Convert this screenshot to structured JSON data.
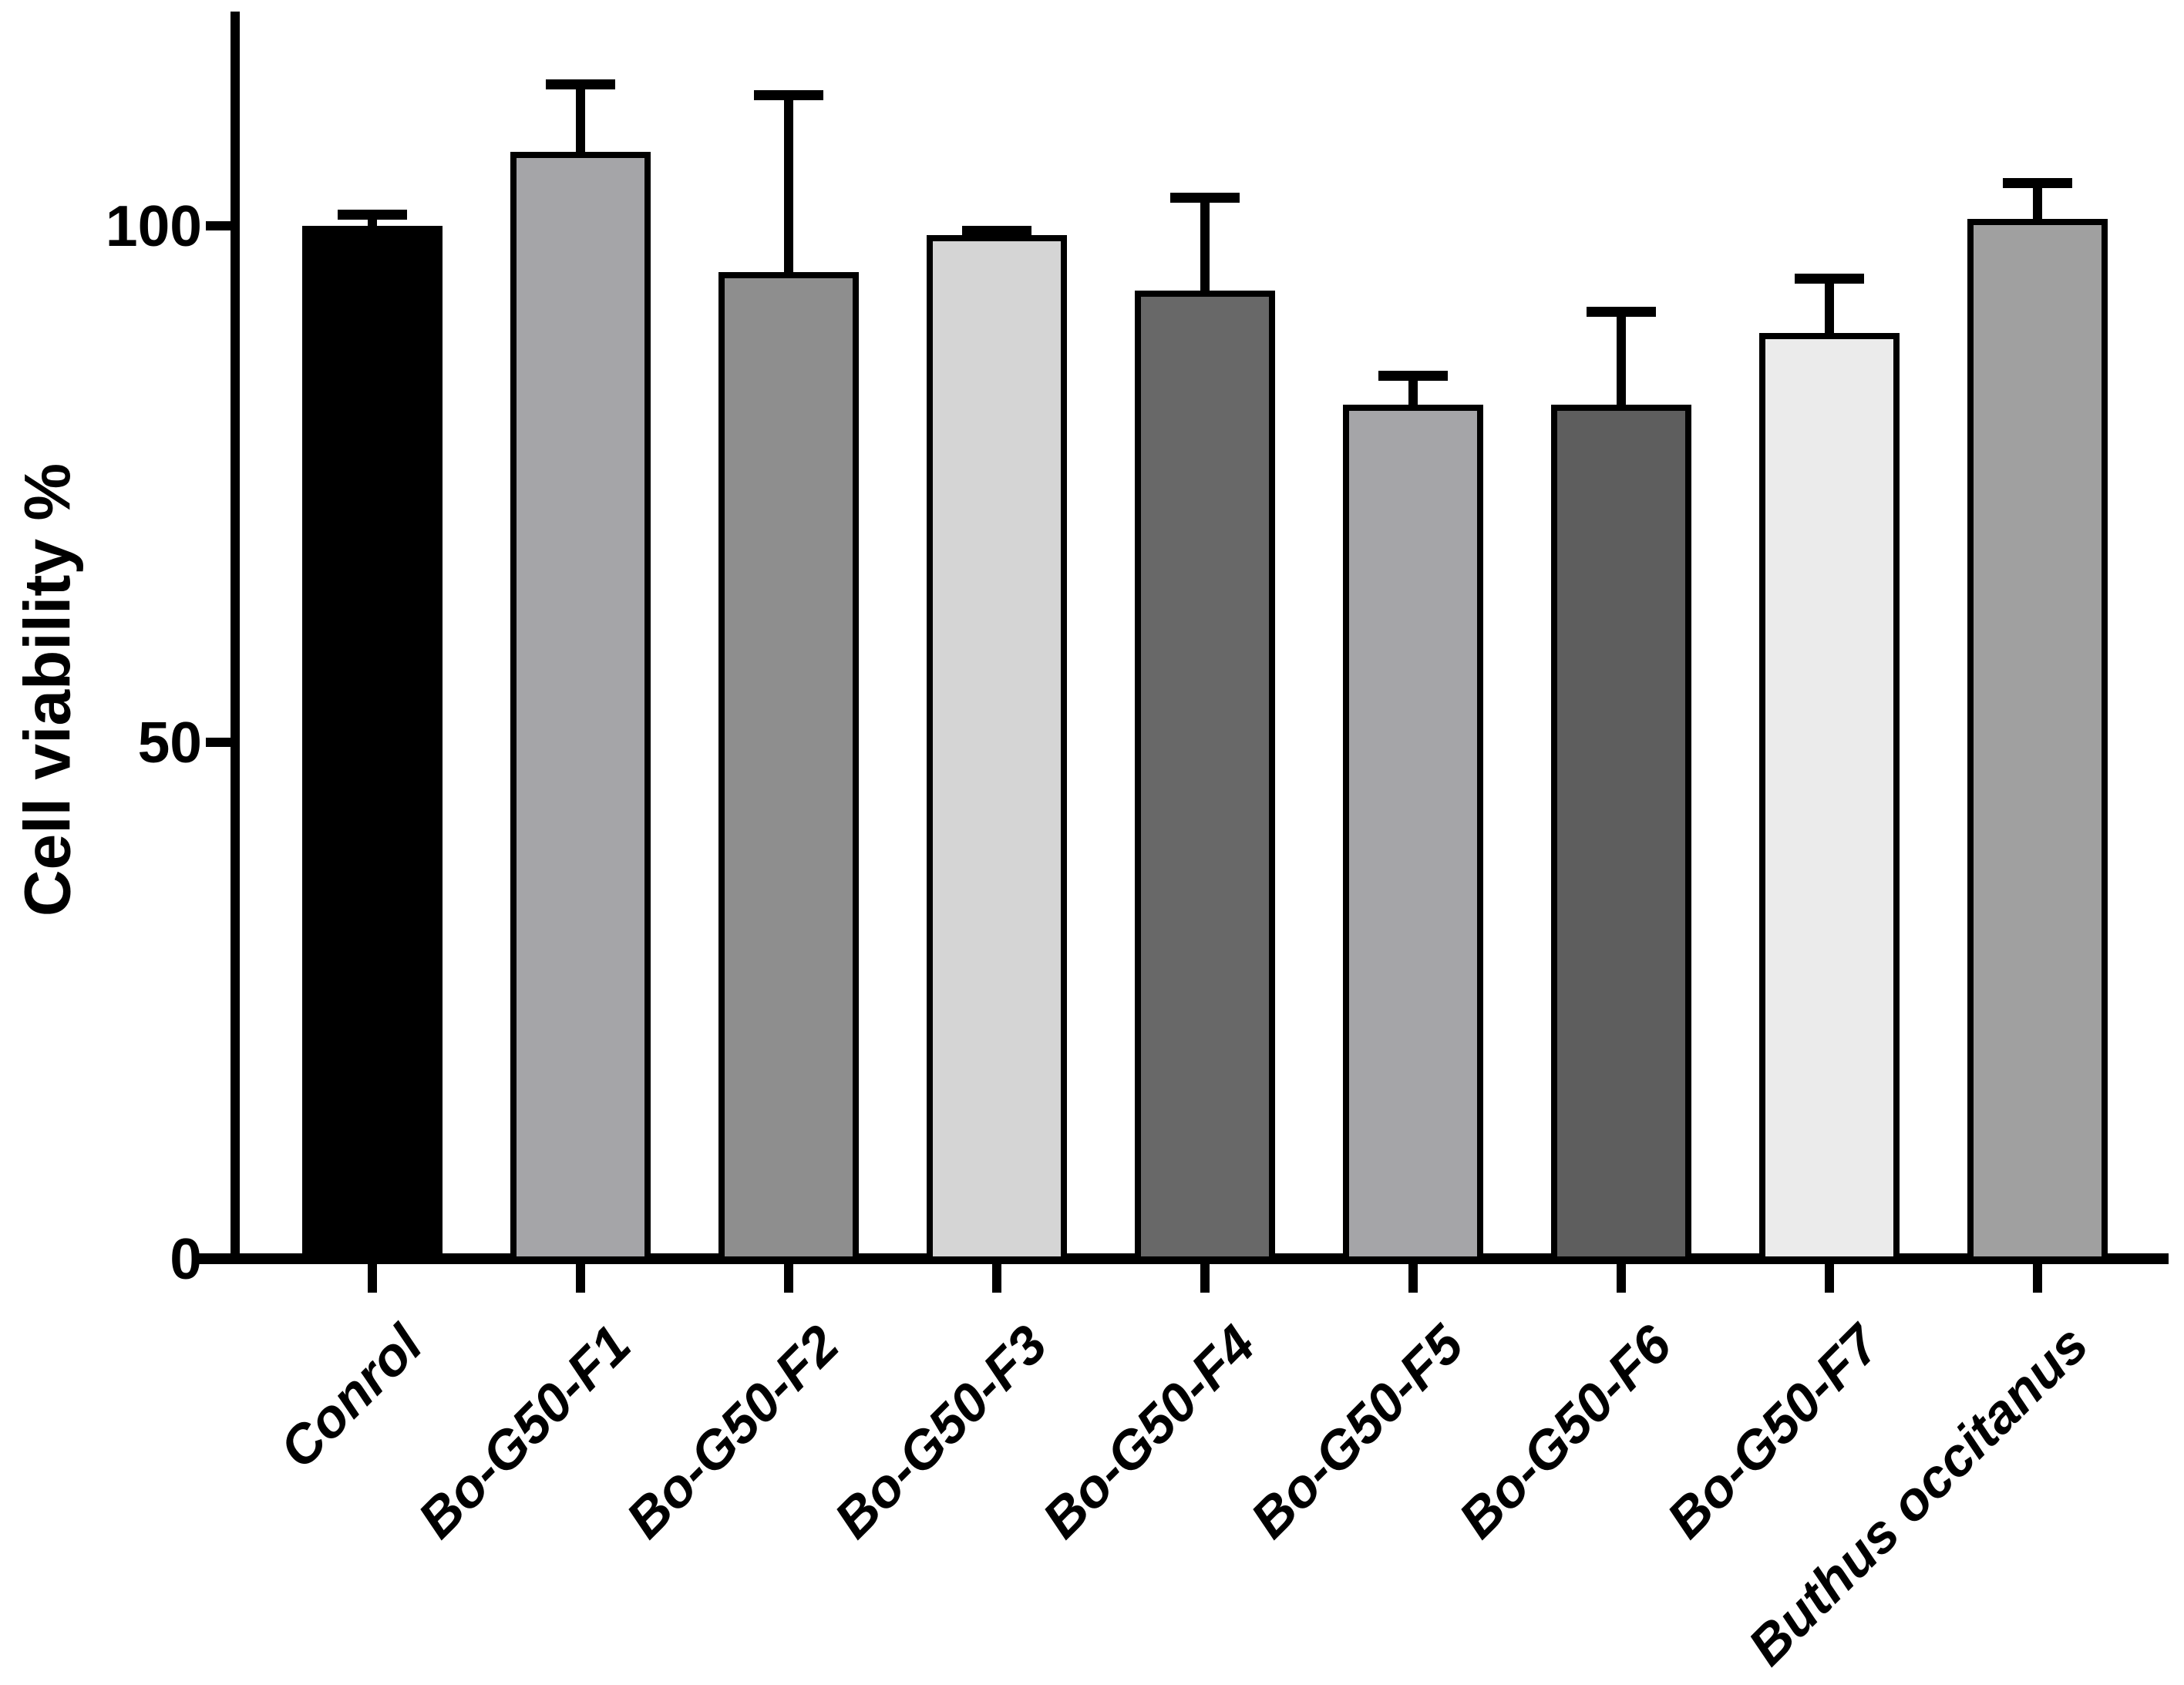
{
  "chart_data": {
    "type": "bar",
    "title": "",
    "xlabel": "",
    "ylabel": "Cell viability %",
    "ylim": [
      0,
      121
    ],
    "yticks": [
      0,
      50,
      100
    ],
    "grid": false,
    "legend": "none",
    "categories": [
      "Conrol",
      "Bo-G50-F1",
      "Bo-G50-F2",
      "Bo-G50-F3",
      "Bo-G50-F4",
      "Bo-G50-F5",
      "Bo-G50-F6",
      "Bo-G50-F7",
      "Buthus occitanus"
    ],
    "values": [
      100,
      107.2,
      95.5,
      99.1,
      93.7,
      82.7,
      82.7,
      89.6,
      100.7
    ],
    "errors_plus": [
      1.6,
      7.0,
      17.6,
      0.9,
      9.5,
      3.3,
      9.5,
      5.8,
      3.9
    ],
    "bar_colors": [
      "#000000",
      "#a5a5a8",
      "#8e8e8e",
      "#d5d5d5",
      "#686868",
      "#a5a5a8",
      "#5e5e5e",
      "#ebebeb",
      "#a0a0a0"
    ],
    "bar_border_color": "#000000",
    "error_color": "#000000",
    "axis_color": "#000000",
    "background_color": "#ffffff"
  }
}
